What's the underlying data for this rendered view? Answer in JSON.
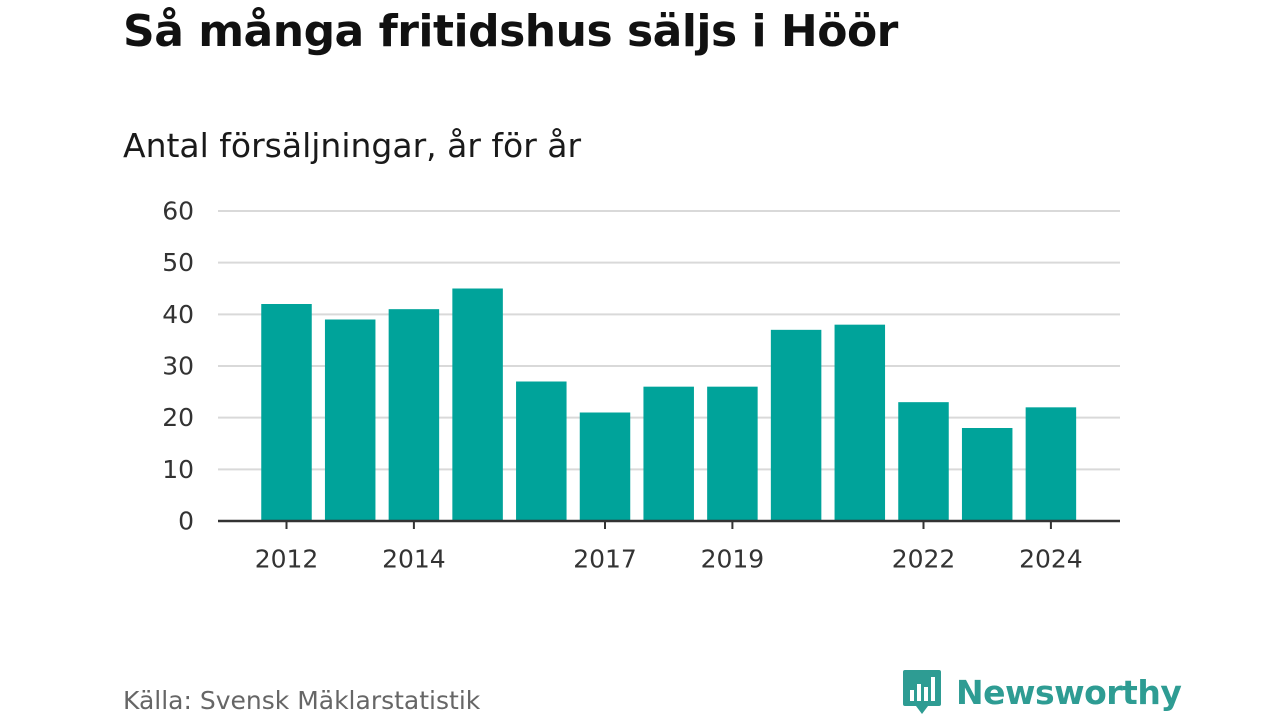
{
  "header": {
    "title": "Så många fritidshus säljs i Höör",
    "subtitle": "Antal försäljningar, år för år"
  },
  "footer": {
    "source": "Källa: Svensk Mäklarstatistik",
    "brand": "Newsworthy",
    "brand_icon": "bar-chart-speech-bubble-icon"
  },
  "colors": {
    "bar": "#00a39a",
    "grid": "#d9d9d9",
    "axis": "#333333",
    "brand": "#2e9c93"
  },
  "chart_data": {
    "type": "bar",
    "categories": [
      "2012",
      "2013",
      "2014",
      "2015",
      "2016",
      "2017",
      "2018",
      "2019",
      "2020",
      "2021",
      "2022",
      "2023",
      "2024"
    ],
    "values": [
      42,
      39,
      41,
      45,
      27,
      21,
      26,
      26,
      37,
      38,
      23,
      18,
      22
    ],
    "x_tick_labels": [
      "2012",
      "2014",
      "2017",
      "2019",
      "2022",
      "2024"
    ],
    "y_ticks": [
      0,
      10,
      20,
      30,
      40,
      50,
      60
    ],
    "ylim": [
      0,
      60
    ],
    "title": "Så många fritidshus säljs i Höör",
    "subtitle": "Antal försäljningar, år för år",
    "xlabel": "",
    "ylabel": "",
    "grid": true,
    "legend": "none"
  }
}
